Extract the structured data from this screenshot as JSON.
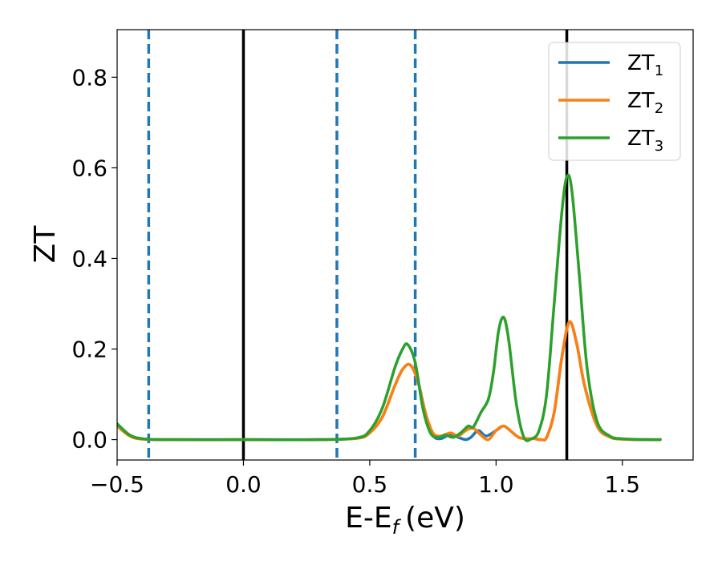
{
  "chart_data": {
    "type": "line",
    "xlabel": "E-E",
    "xlabel_subscript": "f",
    "xlabel_unit": "(eV)",
    "ylabel": "ZT",
    "xlim": [
      -0.5,
      1.78
    ],
    "ylim": [
      -0.045,
      0.905
    ],
    "xticks": [
      -0.5,
      0.0,
      0.5,
      1.0,
      1.5
    ],
    "xtick_labels": [
      "−0.5",
      "0.0",
      "0.5",
      "1.0",
      "1.5"
    ],
    "yticks": [
      0.0,
      0.2,
      0.4,
      0.6,
      0.8
    ],
    "ytick_labels": [
      "0.0",
      "0.2",
      "0.4",
      "0.6",
      "0.8"
    ],
    "grid": false,
    "legend_position": "top-right",
    "vertical_lines": [
      {
        "x": -0.375,
        "style": "dashed",
        "color": "#1f77b4"
      },
      {
        "x": 0.0,
        "style": "solid",
        "color": "#000000"
      },
      {
        "x": 0.37,
        "style": "dashed",
        "color": "#1f77b4"
      },
      {
        "x": 0.68,
        "style": "dashed",
        "color": "#1f77b4"
      },
      {
        "x": 1.28,
        "style": "solid",
        "color": "#000000"
      }
    ],
    "series": [
      {
        "name": "ZT",
        "name_subscript": "1",
        "color": "#1f77b4",
        "x": [
          -0.5,
          -0.45,
          -0.4,
          -0.3,
          0.0,
          0.3,
          0.45,
          0.5,
          0.55,
          0.6,
          0.63,
          0.66,
          0.69,
          0.72,
          0.75,
          0.78,
          0.82,
          0.85,
          0.88,
          0.9,
          0.93,
          0.96,
          1.0,
          1.03,
          1.06,
          1.09,
          1.12,
          1.15,
          1.18,
          1.2,
          1.23,
          1.26,
          1.29,
          1.32,
          1.35,
          1.4,
          1.45,
          1.5,
          1.6,
          1.65
        ],
        "y": [
          0.035,
          0.01,
          0.002,
          0.0,
          0.0,
          0.0,
          0.003,
          0.015,
          0.05,
          0.12,
          0.155,
          0.165,
          0.13,
          0.06,
          0.01,
          0.002,
          0.012,
          0.005,
          0.0,
          0.005,
          0.02,
          0.008,
          0.02,
          0.03,
          0.018,
          0.005,
          0.002,
          0.002,
          0.0,
          0.005,
          0.06,
          0.18,
          0.26,
          0.21,
          0.12,
          0.03,
          0.006,
          0.001,
          0.0,
          0.0
        ]
      },
      {
        "name": "ZT",
        "name_subscript": "2",
        "color": "#ff7f0e",
        "x": [
          -0.5,
          -0.45,
          -0.4,
          -0.3,
          0.0,
          0.3,
          0.45,
          0.5,
          0.55,
          0.6,
          0.63,
          0.66,
          0.69,
          0.72,
          0.75,
          0.78,
          0.82,
          0.85,
          0.88,
          0.91,
          0.94,
          0.97,
          1.0,
          1.03,
          1.06,
          1.09,
          1.12,
          1.15,
          1.18,
          1.2,
          1.23,
          1.26,
          1.29,
          1.32,
          1.35,
          1.4,
          1.45,
          1.5,
          1.6,
          1.65
        ],
        "y": [
          0.03,
          0.008,
          0.001,
          0.0,
          0.0,
          0.0,
          0.003,
          0.015,
          0.05,
          0.12,
          0.155,
          0.165,
          0.13,
          0.06,
          0.015,
          0.008,
          0.015,
          0.008,
          0.02,
          0.025,
          0.01,
          0.0,
          0.02,
          0.03,
          0.018,
          0.005,
          0.002,
          0.002,
          0.0,
          0.005,
          0.06,
          0.18,
          0.26,
          0.21,
          0.12,
          0.03,
          0.006,
          0.001,
          0.0,
          0.0
        ]
      },
      {
        "name": "ZT",
        "name_subscript": "3",
        "color": "#2ca02c",
        "x": [
          -0.5,
          -0.45,
          -0.4,
          -0.3,
          0.0,
          0.3,
          0.45,
          0.5,
          0.55,
          0.6,
          0.63,
          0.65,
          0.68,
          0.71,
          0.74,
          0.77,
          0.8,
          0.83,
          0.86,
          0.89,
          0.91,
          0.94,
          0.97,
          0.99,
          1.01,
          1.03,
          1.05,
          1.08,
          1.11,
          1.14,
          1.17,
          1.2,
          1.23,
          1.26,
          1.28,
          1.3,
          1.33,
          1.36,
          1.4,
          1.45,
          1.5,
          1.6,
          1.65
        ],
        "y": [
          0.035,
          0.01,
          0.002,
          0.0,
          0.0,
          0.0,
          0.004,
          0.02,
          0.07,
          0.16,
          0.2,
          0.21,
          0.17,
          0.07,
          0.015,
          0.005,
          0.01,
          0.005,
          0.015,
          0.03,
          0.028,
          0.06,
          0.09,
          0.15,
          0.24,
          0.27,
          0.22,
          0.08,
          0.005,
          0.002,
          0.02,
          0.1,
          0.3,
          0.5,
          0.58,
          0.55,
          0.36,
          0.16,
          0.04,
          0.008,
          0.002,
          0.0,
          0.0
        ]
      }
    ]
  }
}
